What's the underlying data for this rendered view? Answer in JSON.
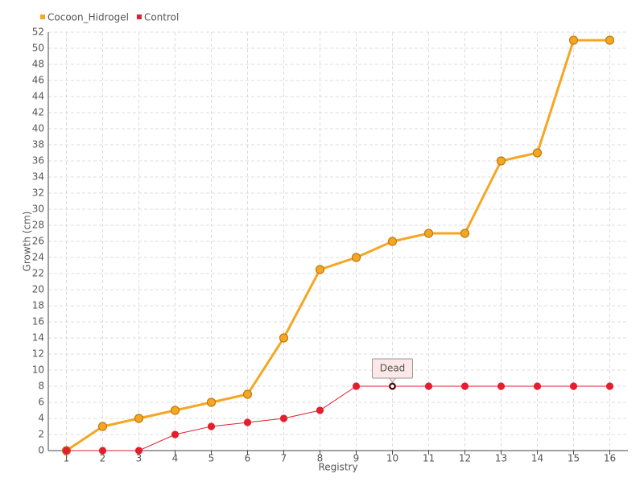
{
  "chart_data": {
    "type": "line",
    "categories": [
      "1",
      "2",
      "3",
      "4",
      "5",
      "6",
      "7",
      "8",
      "9",
      "10",
      "11",
      "12",
      "13",
      "14",
      "15",
      "16"
    ],
    "series": [
      {
        "name": "Cocoon_Hidrogel",
        "color": "#f5a623",
        "values": [
          0,
          3,
          4,
          5,
          6,
          7,
          14,
          22.5,
          24,
          26,
          27,
          27,
          36,
          37,
          51,
          51
        ]
      },
      {
        "name": "Control",
        "color": "#e0202e",
        "values": [
          0,
          0,
          0,
          2,
          3,
          3.5,
          4,
          5,
          8,
          8,
          8,
          8,
          8,
          8,
          8,
          8
        ]
      }
    ],
    "ylim": [
      0,
      52
    ],
    "yticks": [
      0,
      2,
      4,
      6,
      8,
      10,
      12,
      14,
      16,
      18,
      20,
      22,
      24,
      26,
      28,
      30,
      32,
      34,
      36,
      38,
      40,
      42,
      44,
      46,
      48,
      50,
      52
    ],
    "xlabel": "Registry",
    "ylabel": "Growth (cm)",
    "grid": true,
    "legend": "top-left",
    "annotations": [
      {
        "text": "Dead",
        "x": "10",
        "series": "Control"
      }
    ]
  }
}
